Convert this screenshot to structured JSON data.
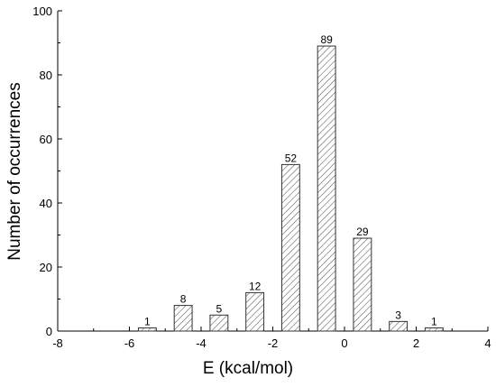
{
  "chart_data": {
    "type": "bar",
    "x": [
      -5.5,
      -4.5,
      -3.5,
      -2.5,
      -1.5,
      -0.5,
      0.5,
      1.5,
      2.5
    ],
    "values": [
      1,
      8,
      5,
      12,
      52,
      89,
      29,
      3,
      1
    ],
    "color": "#333333",
    "xlabel": "E (kcal/mol)",
    "ylabel": "Number of occurrences",
    "xlim": [
      -8,
      4
    ],
    "xticks": [
      -8,
      -6,
      -4,
      -2,
      0,
      2,
      4
    ],
    "ylim": [
      0,
      100
    ],
    "yticks": [
      0,
      20,
      40,
      60,
      80,
      100
    ]
  }
}
